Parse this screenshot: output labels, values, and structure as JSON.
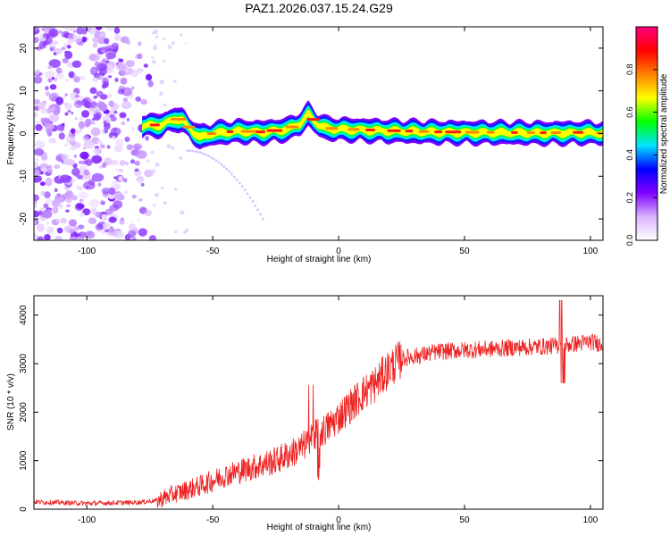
{
  "title": "PAZ1.2026.037.15.24.G29",
  "chart_data": [
    {
      "type": "heatmap",
      "name": "spectrogram",
      "xlabel": "Height of straight line (km)",
      "ylabel": "Frequency (Hz)",
      "xlim": [
        -121,
        105
      ],
      "ylim": [
        -25,
        25
      ],
      "xticks": [
        -100,
        -50,
        0,
        50,
        100
      ],
      "yticks": [
        -20,
        -10,
        0,
        10,
        20
      ],
      "colorbar": {
        "label": "Normalized spectral amplitude",
        "range": [
          0,
          1
        ],
        "ticks": [
          "0.0",
          "0.2",
          "0.4",
          "0.6",
          "0.8"
        ],
        "tick_values": [
          0.0,
          0.2,
          0.4,
          0.6,
          0.8
        ],
        "colors": [
          "#ffffff",
          "#d9b3ff",
          "#8000ff",
          "#0000ff",
          "#00e5ff",
          "#00ff00",
          "#ffff00",
          "#ff8000",
          "#ff0000",
          "#ff0080"
        ]
      },
      "ridge": {
        "description_points_x": [
          -78,
          -70,
          -65,
          -62,
          -58,
          -55,
          -50,
          -40,
          -30,
          -20,
          -15,
          -12,
          -8,
          -5,
          0,
          10,
          20,
          40,
          60,
          80,
          100,
          105
        ],
        "description_points_y": [
          1.8,
          2.0,
          3.5,
          3.0,
          0.5,
          -1.0,
          0.0,
          0.5,
          0.3,
          1.0,
          2.5,
          4.5,
          2.0,
          1.2,
          1.0,
          0.8,
          0.6,
          0.3,
          0.2,
          0.1,
          0.2,
          0.0
        ]
      },
      "noise_region_x": [
        -121,
        -72
      ],
      "branch_x": [
        -60,
        -30
      ],
      "branch_y": [
        -4,
        -20
      ]
    },
    {
      "type": "line",
      "name": "snr",
      "xlabel": "Height of straight line (km)",
      "ylabel": "SNR (10 * v/v)",
      "xlim": [
        -121,
        105
      ],
      "ylim": [
        0,
        4400
      ],
      "xticks": [
        -100,
        -50,
        0,
        50,
        100
      ],
      "yticks": [
        0,
        1000,
        2000,
        3000,
        4000
      ],
      "color": "#ee2222",
      "trend_x": [
        -121,
        -100,
        -80,
        -72,
        -65,
        -55,
        -45,
        -35,
        -25,
        -15,
        -10,
        -5,
        0,
        5,
        10,
        15,
        20,
        25,
        30,
        35,
        40,
        50,
        60,
        70,
        80,
        90,
        100,
        105
      ],
      "trend_y": [
        150,
        120,
        140,
        180,
        320,
        480,
        700,
        850,
        1000,
        1250,
        1500,
        1650,
        1900,
        2150,
        2400,
        2600,
        2900,
        3100,
        3150,
        3200,
        3250,
        3280,
        3300,
        3330,
        3350,
        3380,
        3450,
        3400
      ]
    }
  ]
}
